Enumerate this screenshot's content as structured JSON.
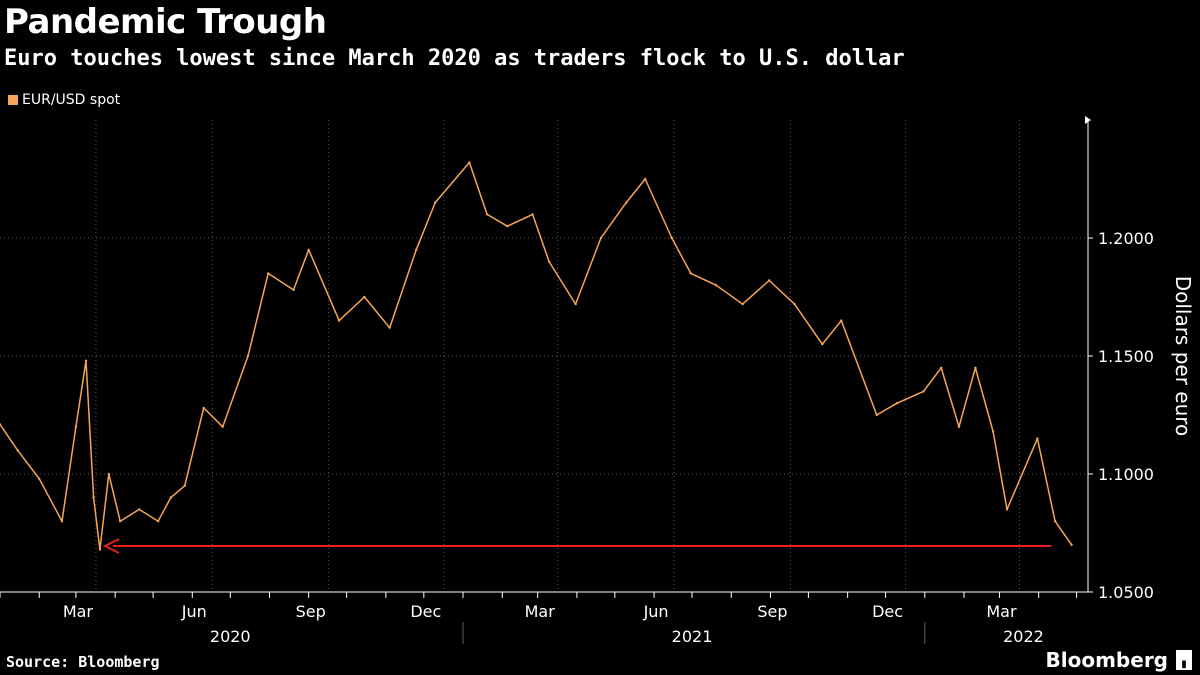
{
  "header": {
    "title": "Pandemic Trough",
    "subtitle": "Euro touches lowest since March 2020 as traders flock to U.S. dollar"
  },
  "footer": {
    "source": "Source: Bloomberg",
    "brand": "Bloomberg",
    "brand_icon": "bloomberg-box-icon"
  },
  "colors": {
    "background": "#000000",
    "series": "#f5a55a",
    "arrow": "#e8211d",
    "grid": "#5a5a5a",
    "text": "#ffffff"
  },
  "chart_data": {
    "type": "line",
    "title": "Pandemic Trough",
    "subtitle": "Euro touches lowest since March 2020 as traders flock to U.S. dollar",
    "ylabel": "Dollars per euro",
    "ylim": [
      1.05,
      1.25
    ],
    "y_ticks": [
      "1.0500",
      "1.1000",
      "1.1500",
      "1.2000"
    ],
    "y_axis_side": "right",
    "grid": true,
    "legend": [
      "EUR/USD spot"
    ],
    "legend_position": "top-left",
    "x_month_ticks": [
      "Mar",
      "Jun",
      "Sep",
      "Dec",
      "Mar",
      "Jun",
      "Sep",
      "Dec",
      "Mar"
    ],
    "x_year_labels": [
      "2020",
      "2021",
      "2022"
    ],
    "series": [
      {
        "name": "EUR/USD spot",
        "x": [
          "2020-01-01",
          "2020-01-15",
          "2020-02-01",
          "2020-02-19",
          "2020-03-01",
          "2020-03-09",
          "2020-03-15",
          "2020-03-20",
          "2020-03-27",
          "2020-04-05",
          "2020-04-20",
          "2020-05-05",
          "2020-05-15",
          "2020-05-26",
          "2020-06-10",
          "2020-06-25",
          "2020-07-15",
          "2020-07-31",
          "2020-08-20",
          "2020-09-01",
          "2020-09-25",
          "2020-10-15",
          "2020-11-04",
          "2020-11-25",
          "2020-12-10",
          "2021-01-06",
          "2021-01-20",
          "2021-02-05",
          "2021-02-25",
          "2021-03-10",
          "2021-03-31",
          "2021-04-20",
          "2021-05-10",
          "2021-05-25",
          "2021-06-15",
          "2021-06-30",
          "2021-07-20",
          "2021-08-10",
          "2021-08-31",
          "2021-09-20",
          "2021-10-12",
          "2021-10-27",
          "2021-11-24",
          "2021-12-10",
          "2021-12-31",
          "2022-01-14",
          "2022-01-28",
          "2022-02-10",
          "2022-02-24",
          "2022-03-07",
          "2022-03-31",
          "2022-04-14",
          "2022-04-27"
        ],
        "y": [
          1.121,
          1.11,
          1.098,
          1.08,
          1.12,
          1.148,
          1.09,
          1.068,
          1.1,
          1.08,
          1.085,
          1.08,
          1.09,
          1.095,
          1.128,
          1.12,
          1.15,
          1.185,
          1.178,
          1.195,
          1.165,
          1.175,
          1.162,
          1.195,
          1.215,
          1.232,
          1.21,
          1.205,
          1.21,
          1.19,
          1.172,
          1.2,
          1.215,
          1.225,
          1.2,
          1.185,
          1.18,
          1.172,
          1.182,
          1.172,
          1.155,
          1.165,
          1.125,
          1.13,
          1.135,
          1.145,
          1.12,
          1.145,
          1.118,
          1.085,
          1.115,
          1.08,
          1.07
        ]
      }
    ],
    "annotations": [
      {
        "type": "arrow",
        "direction": "left",
        "y": 1.0695,
        "x_from": "2022-04-27",
        "x_to": "2020-03-20"
      }
    ]
  }
}
